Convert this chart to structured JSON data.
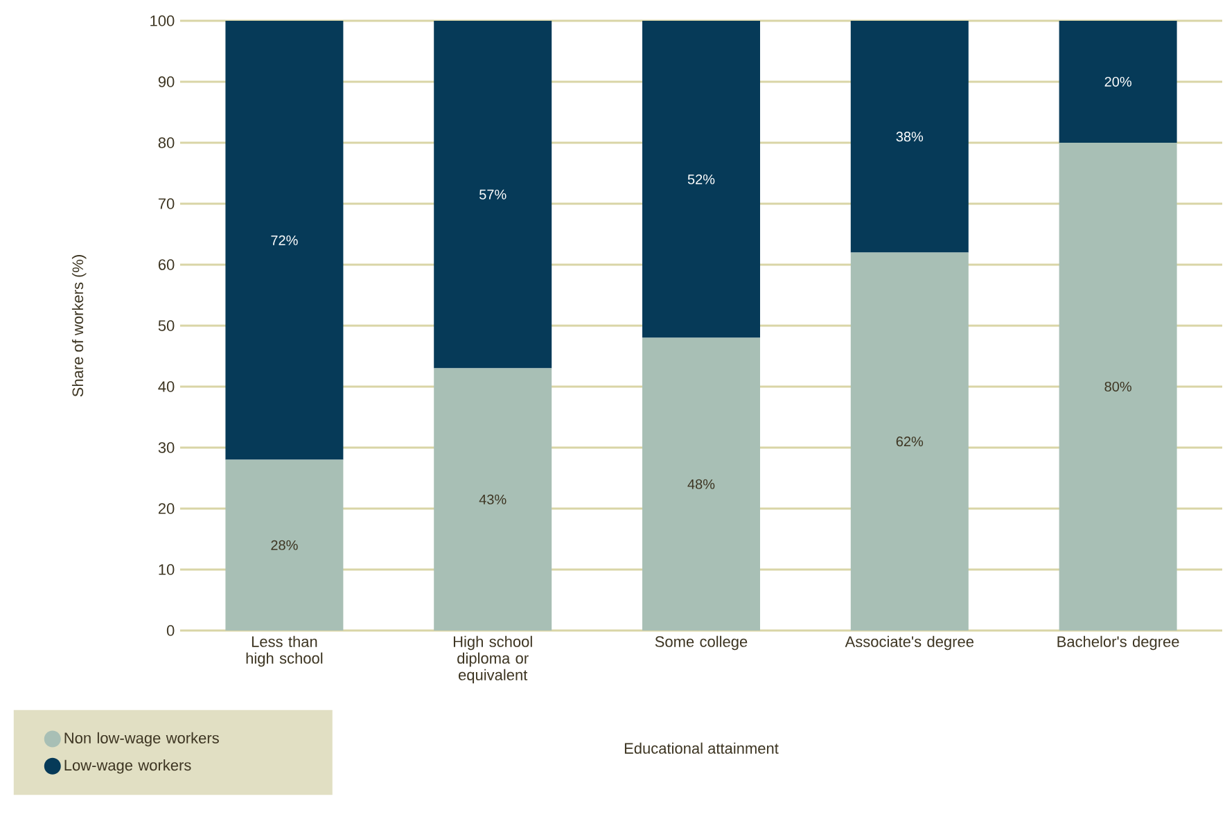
{
  "chart_data": {
    "type": "bar",
    "stacked": true,
    "xlabel": "Educational attainment",
    "ylabel": "Share of workers (%)",
    "categories": [
      "Less than high school",
      "High school diploma or equivalent",
      "Some college",
      "Associate's degree",
      "Bachelor's degree"
    ],
    "series": [
      {
        "name": "Non low-wage workers",
        "color": "#a8bfb5",
        "values": [
          28,
          43,
          48,
          62,
          80
        ],
        "value_labels": [
          "28%",
          "43%",
          "48%",
          "62%",
          "80%"
        ]
      },
      {
        "name": "Low-wage workers",
        "color": "#063a58",
        "values": [
          72,
          57,
          52,
          38,
          20
        ],
        "value_labels": [
          "72%",
          "57%",
          "52%",
          "38%",
          "20%"
        ]
      }
    ],
    "ylim": [
      0,
      100
    ],
    "yticks": [
      0,
      10,
      20,
      30,
      40,
      50,
      60,
      70,
      80,
      90,
      100
    ],
    "grid": "y",
    "legend": "bottom left"
  }
}
